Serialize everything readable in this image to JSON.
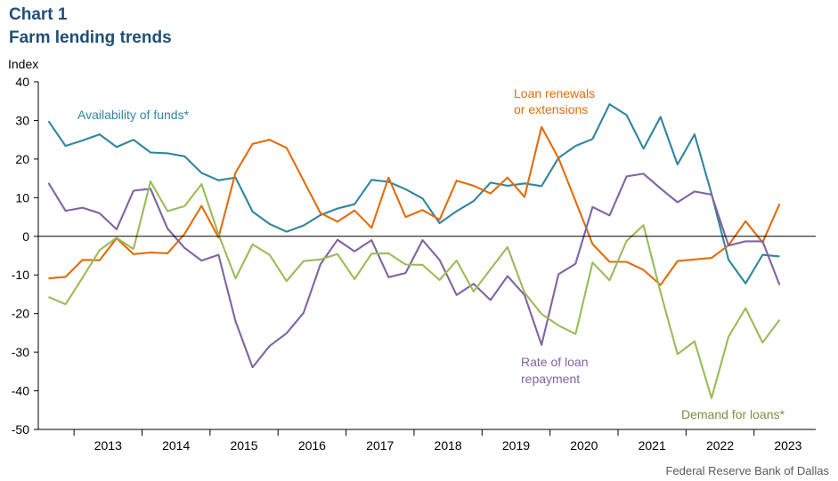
{
  "header": {
    "chart_number": "Chart 1",
    "title": "Farm lending trends"
  },
  "source": "Federal Reserve Bank of Dallas",
  "chart_data": {
    "type": "line",
    "ylabel": "Index",
    "ylim": [
      -50,
      40
    ],
    "yticks": [
      40,
      30,
      20,
      10,
      0,
      -10,
      -20,
      -30,
      -40,
      -50
    ],
    "x_start": "2012 Q3",
    "x_end": "2023 Q4",
    "year_labels": [
      "2013",
      "2014",
      "2015",
      "2016",
      "2017",
      "2018",
      "2019",
      "2020",
      "2021",
      "2022",
      "2023"
    ],
    "grid": false,
    "series": [
      {
        "name": "Availability of funds*",
        "color": "#31859c",
        "values": [
          29.8,
          23.4,
          24.8,
          26.4,
          23.1,
          25.0,
          21.7,
          21.5,
          20.7,
          16.4,
          14.5,
          15.2,
          6.4,
          3.2,
          1.2,
          2.8,
          5.5,
          7.2,
          8.3,
          14.6,
          14.1,
          12.2,
          9.8,
          3.4,
          6.5,
          9.1,
          13.9,
          13.1,
          13.7,
          13.0,
          20.3,
          23.4,
          25.2,
          34.2,
          31.4,
          22.7,
          30.9,
          18.6,
          26.4,
          11.0,
          -6.1,
          -12.2,
          -4.8,
          -5.2
        ]
      },
      {
        "name": "Loan renewals or extensions",
        "color": "#e36c09",
        "values": [
          -10.9,
          -10.5,
          -6.1,
          -6.2,
          -0.5,
          -4.6,
          -4.2,
          -4.4,
          0.6,
          7.9,
          -0.3,
          16.5,
          23.9,
          25.0,
          22.9,
          14.4,
          6.0,
          3.8,
          6.7,
          2.2,
          15.2,
          5.0,
          6.8,
          4.3,
          14.4,
          13.1,
          11.1,
          15.2,
          10.2,
          28.3,
          20.2,
          9.1,
          -2.0,
          -6.6,
          -6.6,
          -8.7,
          -12.6,
          -6.4,
          -6.0,
          -5.6,
          -2.3,
          3.9,
          -1.6,
          8.4
        ]
      },
      {
        "name": "Rate of loan repayment",
        "color": "#8064a2",
        "values": [
          13.8,
          6.6,
          7.4,
          6.0,
          1.8,
          11.8,
          12.3,
          2.0,
          -3.0,
          -6.3,
          -4.8,
          -22.0,
          -33.9,
          -28.4,
          -25.1,
          -19.8,
          -7.2,
          -0.9,
          -3.9,
          -1.0,
          -10.6,
          -9.5,
          -1.0,
          -6.1,
          -15.2,
          -12.3,
          -16.5,
          -10.3,
          -15.2,
          -28.1,
          -9.8,
          -7.1,
          7.6,
          5.4,
          15.5,
          16.2,
          12.4,
          8.8,
          11.6,
          10.8,
          -2.4,
          -1.3,
          -1.3,
          -12.6
        ]
      },
      {
        "name": "Demand for loans*",
        "color": "#9bbb59",
        "values": [
          -15.7,
          -17.6,
          -10.7,
          -3.6,
          -0.4,
          -3.3,
          14.2,
          6.5,
          7.8,
          13.5,
          0.5,
          -10.9,
          -2.1,
          -4.8,
          -11.6,
          -6.4,
          -6.0,
          -4.6,
          -11.1,
          -4.5,
          -4.4,
          -7.3,
          -7.4,
          -11.3,
          -6.3,
          -14.3,
          -8.5,
          -2.8,
          -14.6,
          -20.1,
          -23.1,
          -25.3,
          -6.8,
          -11.4,
          -1.2,
          2.9,
          -14.5,
          -30.5,
          -27.2,
          -41.9,
          -26.0,
          -18.6,
          -27.5,
          -21.6
        ]
      }
    ],
    "annotations": [
      {
        "lines": [
          "Availability of funds*"
        ],
        "color": "#31859c"
      },
      {
        "lines": [
          "Loan renewals",
          "or extensions"
        ],
        "color": "#e36c09"
      },
      {
        "lines": [
          "Rate of loan",
          "repayment"
        ],
        "color": "#8064a2"
      },
      {
        "lines": [
          "Demand for loans*"
        ],
        "color": "#76923c"
      }
    ]
  }
}
